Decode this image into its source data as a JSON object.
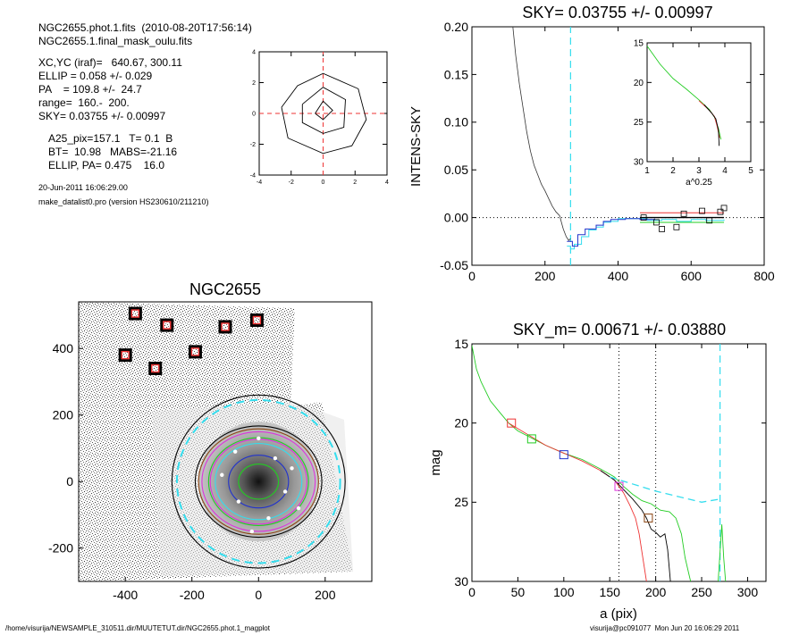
{
  "header": {
    "line1": "NGC2655.phot.1.fits  (2010-08-20T17:56:14)",
    "line2": "NGC2655.1.final_mask_oulu.fits",
    "xcyc": "XC,YC (iraf)=   640.67, 300.11",
    "ellip": "ELLIP = 0.058 +/- 0.029",
    "pa": "PA    = 109.8 +/-  24.7",
    "range": "range=  160.-  200.",
    "sky": "SKY= 0.03755 +/- 0.00997",
    "a25": "A25_pix=157.1   T= 0.1  B",
    "bt": "BT=  10.98   MABS=-21.16",
    "ellip_pa": "ELLIP, PA= 0.475    16.0",
    "date": "20-Jun-2011 16:06:29.00",
    "program": "make_datalist0.pro (version HS230610/211210)"
  },
  "footer": {
    "path": "/home/visurija/NEWSAMPLE_310511.dir/MUUTETUT.dir/NGC2655.phot.1_magplot",
    "user": "visurija@pc091077  Mon Jun 20 16:06:29 2011"
  },
  "colors": {
    "cyan": "#33ddee",
    "red": "#ee3333",
    "green": "#22cc22",
    "blue": "#2233cc",
    "magenta": "#dd33dd",
    "brown": "#8b4513"
  },
  "chart_data": [
    {
      "id": "centroid-panel",
      "type": "line",
      "title": "",
      "xlim": [
        -4,
        4
      ],
      "ylim": [
        -4,
        4
      ],
      "xticks": [
        "-4",
        "-2",
        "0",
        "2",
        "4"
      ],
      "yticks": [
        "-4",
        "-2",
        "0",
        "2",
        "4"
      ],
      "series": [
        {
          "values_x": [
            -2.6,
            -1.6,
            0,
            2.2,
            2.7,
            1.8,
            0,
            -2.2,
            -2.6
          ],
          "values_y": [
            0.4,
            1.8,
            2.6,
            1.6,
            -0.4,
            -2.1,
            -2.6,
            -1.6,
            0.4
          ]
        },
        {
          "values_x": [
            -1.3,
            0,
            1.4,
            1.3,
            0,
            -1.3,
            -1.3
          ],
          "values_y": [
            0.6,
            1.7,
            0.9,
            -0.9,
            -1.3,
            -0.6,
            0.6
          ]
        },
        {
          "values_x": [
            -0.5,
            0,
            0.6,
            0,
            -0.5
          ],
          "values_y": [
            0,
            0.8,
            0.2,
            -0.4,
            0
          ]
        }
      ]
    },
    {
      "id": "sky-panel",
      "type": "line",
      "title": "SKY= 0.03755 +/- 0.00997",
      "xlabel": "",
      "ylabel": "INTENS-SKY",
      "xlim": [
        0,
        800
      ],
      "ylim": [
        -0.05,
        0.2
      ],
      "xticks": [
        "0",
        "200",
        "400",
        "600",
        "800"
      ],
      "yticks": [
        "-0.05",
        "0.00",
        "0.05",
        "0.10",
        "0.15",
        "0.20"
      ],
      "sky_radius": 270,
      "profile": {
        "x": [
          112,
          120,
          130,
          140,
          150,
          160,
          170,
          180,
          190,
          200,
          210,
          220,
          230,
          240,
          250,
          258,
          265,
          270
        ],
        "y": [
          0.2,
          0.17,
          0.14,
          0.115,
          0.09,
          0.07,
          0.055,
          0.045,
          0.035,
          0.028,
          0.02,
          0.012,
          0.006,
          0.002,
          -0.012,
          -0.02,
          -0.024,
          -0.022
        ]
      },
      "cyan_step": {
        "x": [
          260,
          270,
          280,
          300,
          320,
          340,
          360,
          380,
          400,
          440,
          480,
          520,
          560,
          600,
          640,
          690
        ],
        "y": [
          -0.03,
          -0.033,
          -0.028,
          -0.02,
          -0.013,
          -0.01,
          -0.005,
          -0.004,
          -0.001,
          -0.001,
          -0.003,
          -0.002,
          -0.004,
          -0.002,
          -0.003,
          -0.002
        ]
      },
      "blue_step": {
        "x": [
          260,
          275,
          290,
          310,
          340,
          360,
          380,
          420,
          460,
          500
        ],
        "y": [
          -0.025,
          -0.03,
          -0.018,
          -0.012,
          -0.008,
          -0.004,
          -0.002,
          -0.001,
          -0.002,
          -0.001
        ]
      },
      "levels": [
        {
          "name": "red",
          "x": [
            460,
            690
          ],
          "y": 0.005
        },
        {
          "name": "black",
          "x": [
            460,
            690
          ],
          "y": 0.0
        },
        {
          "name": "green",
          "x": [
            460,
            690
          ],
          "y": -0.005
        }
      ],
      "squares": {
        "x": [
          470,
          505,
          520,
          560,
          580,
          630,
          650,
          680,
          690
        ],
        "y": [
          0.0,
          -0.005,
          -0.012,
          -0.01,
          0.004,
          0.007,
          -0.003,
          0.006,
          0.01
        ]
      },
      "inset": {
        "xlabel": "a^0.25",
        "xlim": [
          1,
          5
        ],
        "ylim": [
          15,
          30
        ],
        "xticks": [
          "1",
          "2",
          "3",
          "4",
          "5"
        ],
        "yticks": [
          "15",
          "20",
          "25",
          "30"
        ],
        "series": [
          {
            "name": "green",
            "x": [
              1.0,
              1.5,
              2.0,
              2.5,
              3.0,
              3.4,
              3.6,
              3.75,
              3.85
            ],
            "y": [
              15.4,
              17.7,
              19.5,
              20.8,
              22.2,
              23.4,
              24.4,
              25.8,
              27.2
            ]
          },
          {
            "name": "red",
            "x": [
              3.0,
              3.4,
              3.6,
              3.7,
              3.8
            ],
            "y": [
              22.3,
              23.5,
              24.3,
              25.5,
              27.0
            ]
          },
          {
            "name": "black",
            "x": [
              3.2,
              3.5,
              3.65,
              3.75,
              3.78
            ],
            "y": [
              22.8,
              23.9,
              24.6,
              26.0,
              28.0
            ]
          }
        ]
      }
    },
    {
      "id": "image-panel",
      "type": "scatter",
      "title": "NGC2655",
      "xlim": [
        -540,
        340
      ],
      "ylim": [
        -300,
        540
      ],
      "xticks": [
        "-400",
        "-200",
        "0",
        "200"
      ],
      "yticks": [
        "-200",
        "0",
        "200",
        "400"
      ],
      "markers": {
        "x": [
          -370,
          -275,
          -400,
          -310,
          -190,
          -100,
          -5
        ],
        "y": [
          505,
          470,
          380,
          340,
          390,
          465,
          485
        ]
      },
      "ellipses_a": [
        260,
        245,
        190,
        180,
        170,
        150,
        145,
        130,
        90,
        60
      ],
      "ellipse_colors": [
        "black",
        "cyan",
        "black",
        "brown",
        "magenta",
        "green",
        "magenta",
        "cyan",
        "blue",
        "green"
      ]
    },
    {
      "id": "mag-panel",
      "type": "line",
      "title": "SKY_m=  0.00671 +/- 0.03880",
      "xlabel": "a (pix)",
      "ylabel": "mag",
      "xlim": [
        0,
        320
      ],
      "ylim": [
        15,
        30
      ],
      "xticks": [
        "0",
        "50",
        "100",
        "150",
        "200",
        "250",
        "300"
      ],
      "yticks": [
        "15",
        "20",
        "25",
        "30"
      ],
      "vlines": [
        160,
        200
      ],
      "sky_radius": 270,
      "series": [
        {
          "name": "green",
          "x": [
            0,
            5,
            10,
            20,
            30,
            40,
            50,
            65,
            80,
            100,
            120,
            140,
            155,
            165,
            175,
            185,
            195,
            205,
            215,
            222,
            228,
            232,
            236,
            238
          ],
          "y": [
            15.1,
            16.6,
            17.4,
            18.6,
            19.3,
            20.0,
            20.5,
            20.95,
            21.4,
            21.9,
            22.3,
            22.9,
            23.4,
            24.0,
            24.5,
            24.9,
            25.1,
            25.5,
            25.6,
            26.0,
            27.0,
            28.5,
            29.5,
            30
          ]
        },
        {
          "name": "red",
          "x": [
            40,
            60,
            80,
            100,
            120,
            140,
            155,
            165,
            172,
            178,
            182,
            186,
            190
          ],
          "y": [
            20.0,
            20.7,
            21.4,
            21.9,
            22.4,
            23.0,
            23.6,
            24.4,
            25.2,
            26.0,
            27.0,
            28.5,
            30
          ]
        },
        {
          "name": "black",
          "x": [
            140,
            155,
            165,
            175,
            185,
            190,
            195,
            200,
            205,
            210,
            213,
            216
          ],
          "y": [
            23.0,
            23.6,
            24.2,
            24.8,
            25.5,
            26.0,
            26.7,
            26.9,
            27.2,
            27.0,
            28.0,
            30
          ]
        },
        {
          "name": "cyan_dash",
          "x": [
            150,
            200,
            250,
            270
          ],
          "y": [
            23.4,
            24.3,
            25.0,
            24.8
          ]
        },
        {
          "name": "green_spike",
          "x": [
            268,
            272,
            274,
            276
          ],
          "y": [
            30,
            26.4,
            28.5,
            30
          ]
        }
      ],
      "squares": [
        {
          "x": 43,
          "y": 20.0,
          "color": "red"
        },
        {
          "x": 65,
          "y": 21.0,
          "color": "green"
        },
        {
          "x": 100,
          "y": 22.0,
          "color": "blue"
        },
        {
          "x": 160,
          "y": 24.0,
          "color": "magenta"
        },
        {
          "x": 192,
          "y": 26.0,
          "color": "brown"
        }
      ]
    }
  ]
}
